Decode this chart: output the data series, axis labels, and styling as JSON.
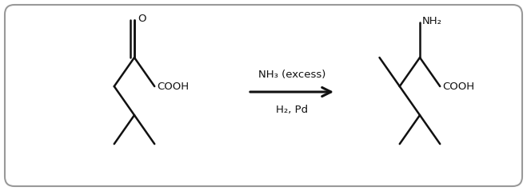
{
  "bg_color": "#ffffff",
  "line_color": "#111111",
  "line_width": 1.8,
  "border_color": "#999999",
  "fig_width": 6.59,
  "fig_height": 2.39,
  "arrow_above": "NH₃ (excess)",
  "arrow_below": "H₂, Pd",
  "cooh_label": "COOH",
  "nh2_label": "NH₂",
  "o_label": "O",
  "font_size": 9.5
}
